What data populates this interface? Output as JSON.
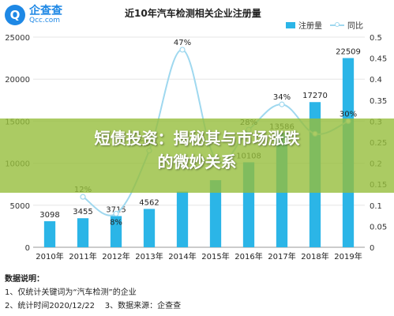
{
  "logo": {
    "mark": "Q",
    "name_cn": "企查查",
    "name_en": "Qcc.com"
  },
  "chart_data": {
    "type": "bar",
    "title": "近10年汽车检测相关企业注册量",
    "categories": [
      "2010年",
      "2011年",
      "2012年",
      "2013年",
      "2014年",
      "2015年",
      "2016年",
      "2017年",
      "2018年",
      "2019年"
    ],
    "series": [
      {
        "name": "注册量",
        "type": "bar",
        "axis": "left",
        "color": "#2bb5e7",
        "values": [
          3098,
          3455,
          3715,
          4562,
          6622,
          7980,
          10108,
          13586,
          17270,
          22509
        ]
      },
      {
        "name": "同比",
        "type": "line",
        "axis": "right",
        "color": "#9fd8ef",
        "values": [
          null,
          0.12,
          0.08,
          0.23,
          0.47,
          0.21,
          0.28,
          0.34,
          0.27,
          0.3
        ]
      }
    ],
    "bar_labels": [
      "3098",
      "3455",
      "3715",
      "4562",
      "",
      "",
      "10108",
      "13586",
      "17270",
      "22509"
    ],
    "line_labels": [
      "",
      "12%",
      "8%",
      "23%",
      "47%",
      "",
      "28%",
      "34%",
      "",
      "30%"
    ],
    "left_axis": {
      "ylim": [
        0,
        25000
      ],
      "ticks": [
        "0",
        "5000",
        "10000",
        "15000",
        "20000",
        "25000"
      ]
    },
    "right_axis": {
      "ylim": [
        0,
        0.5
      ],
      "ticks": [
        "0",
        "0.05",
        "0.1",
        "0.15",
        "0.2",
        "0.25",
        "0.3",
        "0.35",
        "0.4",
        "0.45",
        "0.5"
      ]
    },
    "legend_position": "top-right",
    "grid": true
  },
  "legend": {
    "bar_label": "注册量",
    "line_label": "同比"
  },
  "notes": {
    "heading": "数据说明：",
    "line1": "1、仅统计关键词为“汽车检测”的企业",
    "line2": "2、统计时间2020/12/22    3、数据来源：企查查"
  },
  "banner": {
    "line1": "短债投资：揭秘其与市场涨跌",
    "line2": "的微妙关系",
    "color": "#96be3c"
  }
}
